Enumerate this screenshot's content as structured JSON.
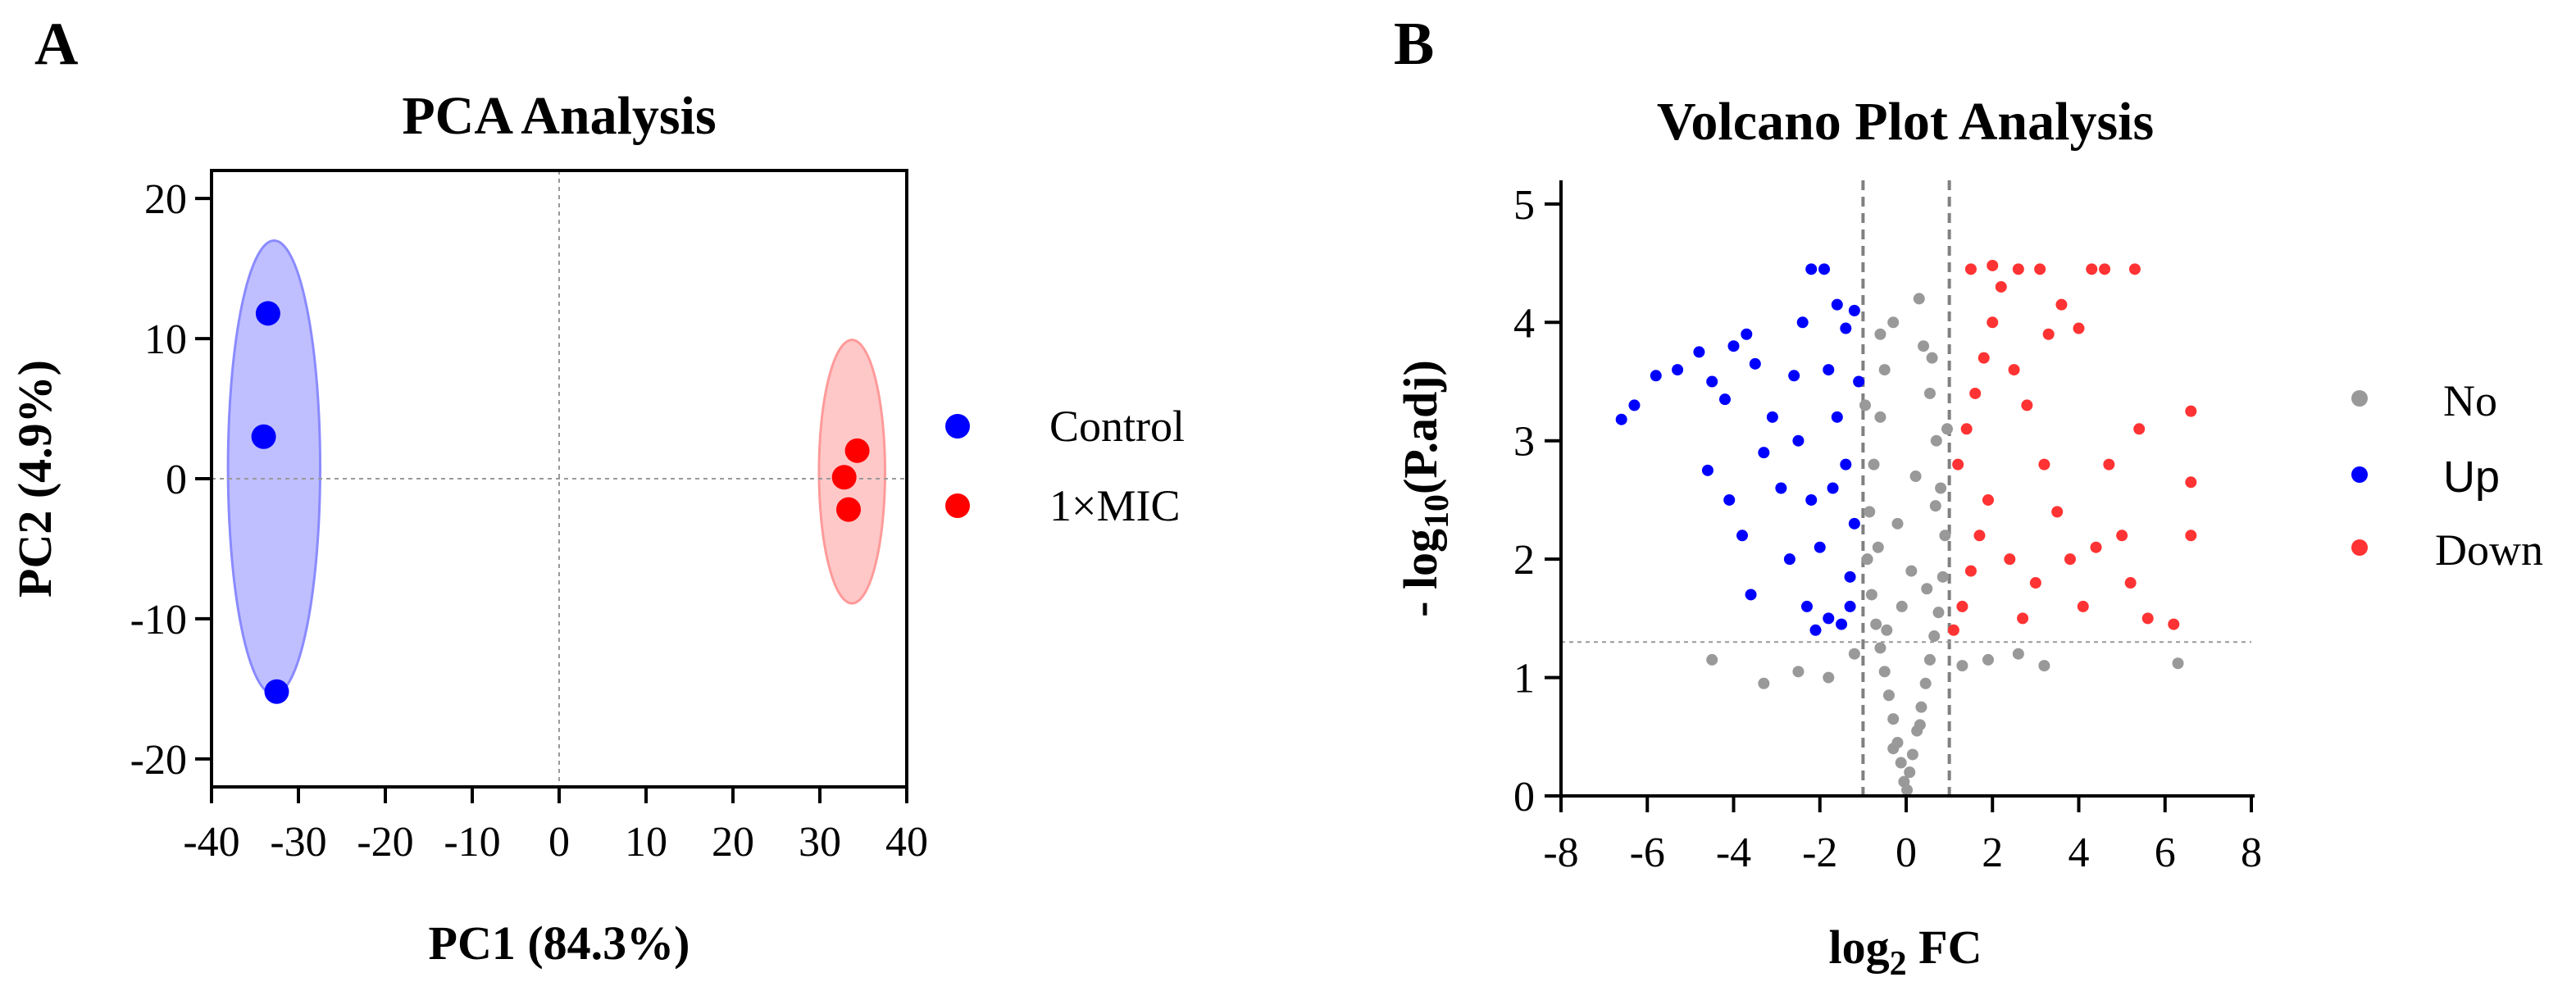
{
  "panels": {
    "a": {
      "letter": "A"
    },
    "b": {
      "letter": "B"
    }
  },
  "chart_data": [
    {
      "type": "scatter",
      "title": "PCA Analysis",
      "xlabel": "PC1 (84.3%)",
      "ylabel": "PC2 (4.9%)",
      "xlim": [
        -40,
        40
      ],
      "ylim": [
        -22,
        22
      ],
      "xticks": [
        -40,
        -30,
        -20,
        -10,
        0,
        10,
        20,
        30,
        40
      ],
      "yticks": [
        -20,
        -10,
        0,
        10,
        20
      ],
      "xtick_labels": [
        "-40",
        "-30",
        "-20",
        "-10",
        "0",
        "10",
        "20",
        "30",
        "40"
      ],
      "ytick_labels": [
        "-20",
        "-10",
        "0",
        "10",
        "20"
      ],
      "reference_lines": {
        "x": 0,
        "y": 0
      },
      "legend_position": "right",
      "series": [
        {
          "name": "Control",
          "color": "#0000ff",
          "ellipse_color": "#8a8aff",
          "points": [
            [
              -33.5,
              11.8
            ],
            [
              -34,
              3
            ],
            [
              -32.5,
              -15.2
            ]
          ],
          "ellipse": {
            "cx": -32.8,
            "cy": 0.8,
            "rx": 5.3,
            "ry": 16.2
          }
        },
        {
          "name": "1×MIC",
          "color": "#ff0000",
          "ellipse_color": "#ff9a9a",
          "points": [
            [
              34.3,
              2
            ],
            [
              32.8,
              0.1
            ],
            [
              33.3,
              -2.2
            ]
          ],
          "ellipse": {
            "cx": 33.7,
            "cy": 0.5,
            "rx": 3.8,
            "ry": 9.4
          }
        }
      ]
    },
    {
      "type": "scatter",
      "title": "Volcano Plot Analysis",
      "xlabel_main": "log",
      "xlabel_sub": "2",
      "xlabel_tail": " FC",
      "ylabel_main": "- log",
      "ylabel_sub": "10",
      "ylabel_tail": "(P.adj)",
      "xlim": [
        -8,
        8
      ],
      "ylim": [
        0,
        5.2
      ],
      "xticks": [
        -8,
        -6,
        -4,
        -2,
        0,
        2,
        4,
        6,
        8
      ],
      "yticks": [
        0,
        1,
        2,
        3,
        4,
        5
      ],
      "xtick_labels": [
        "-8",
        "-6",
        "-4",
        "-2",
        "0",
        "2",
        "4",
        "6",
        "8"
      ],
      "ytick_labels": [
        "0",
        "1",
        "2",
        "3",
        "4",
        "5"
      ],
      "thresholds": {
        "x": [
          -1,
          1
        ],
        "y": 1.3
      },
      "legend_position": "right",
      "series": [
        {
          "name": "No",
          "color": "#999999",
          "points": [
            [
              0.02,
              0.05
            ],
            [
              -0.05,
              0.12
            ],
            [
              0.08,
              0.2
            ],
            [
              -0.12,
              0.28
            ],
            [
              0.15,
              0.35
            ],
            [
              -0.2,
              0.45
            ],
            [
              0.25,
              0.55
            ],
            [
              -0.3,
              0.65
            ],
            [
              0.35,
              0.75
            ],
            [
              -0.4,
              0.85
            ],
            [
              0.45,
              0.95
            ],
            [
              -0.5,
              1.05
            ],
            [
              0.55,
              1.15
            ],
            [
              -0.6,
              1.25
            ],
            [
              0.65,
              1.35
            ],
            [
              -0.7,
              1.45
            ],
            [
              0.75,
              1.55
            ],
            [
              -0.8,
              1.7
            ],
            [
              0.85,
              1.85
            ],
            [
              -0.9,
              2.0
            ],
            [
              0.9,
              2.2
            ],
            [
              -0.85,
              2.4
            ],
            [
              0.8,
              2.6
            ],
            [
              -0.75,
              2.8
            ],
            [
              0.7,
              3.0
            ],
            [
              -0.6,
              3.2
            ],
            [
              0.55,
              3.4
            ],
            [
              -0.5,
              3.6
            ],
            [
              0.4,
              3.8
            ],
            [
              -0.3,
              4.0
            ],
            [
              0.3,
              4.2
            ],
            [
              -0.6,
              3.9
            ],
            [
              0.6,
              3.7
            ],
            [
              -0.95,
              3.3
            ],
            [
              0.95,
              3.1
            ],
            [
              -1.2,
              1.2
            ],
            [
              1.3,
              1.1
            ],
            [
              -1.8,
              1.0
            ],
            [
              1.9,
              1.15
            ],
            [
              -2.5,
              1.05
            ],
            [
              2.6,
              1.2
            ],
            [
              -3.3,
              0.95
            ],
            [
              3.2,
              1.1
            ],
            [
              -4.5,
              1.15
            ],
            [
              6.3,
              1.12
            ],
            [
              -0.1,
              1.6
            ],
            [
              0.12,
              1.9
            ],
            [
              -0.2,
              2.3
            ],
            [
              0.22,
              2.7
            ],
            [
              -0.3,
              0.4
            ],
            [
              0.32,
              0.6
            ],
            [
              -0.45,
              1.4
            ],
            [
              0.48,
              1.75
            ],
            [
              -0.65,
              2.1
            ],
            [
              0.68,
              2.45
            ]
          ]
        },
        {
          "name": "Up",
          "color": "#0000ff",
          "points": [
            [
              -6.6,
              3.18
            ],
            [
              -6.3,
              3.3
            ],
            [
              -5.8,
              3.55
            ],
            [
              -5.3,
              3.6
            ],
            [
              -4.8,
              3.75
            ],
            [
              -4.5,
              3.5
            ],
            [
              -4.2,
              3.35
            ],
            [
              -4.0,
              3.8
            ],
            [
              -3.7,
              3.9
            ],
            [
              -3.5,
              3.65
            ],
            [
              -4.6,
              2.75
            ],
            [
              -4.1,
              2.5
            ],
            [
              -3.8,
              2.2
            ],
            [
              -3.6,
              1.7
            ],
            [
              -3.3,
              2.9
            ],
            [
              -3.1,
              3.2
            ],
            [
              -2.9,
              2.6
            ],
            [
              -2.7,
              2.0
            ],
            [
              -2.6,
              3.55
            ],
            [
              -2.4,
              4.0
            ],
            [
              -2.2,
              4.45
            ],
            [
              -1.9,
              4.45
            ],
            [
              -1.6,
              4.15
            ],
            [
              -1.4,
              3.95
            ],
            [
              -1.2,
              4.1
            ],
            [
              -2.3,
              1.6
            ],
            [
              -2.1,
              1.4
            ],
            [
              -1.8,
              1.5
            ],
            [
              -1.5,
              1.45
            ],
            [
              -1.3,
              1.85
            ],
            [
              -1.2,
              2.3
            ],
            [
              -1.4,
              2.8
            ],
            [
              -1.6,
              3.2
            ],
            [
              -1.8,
              3.6
            ],
            [
              -2.0,
              2.1
            ],
            [
              -2.2,
              2.5
            ],
            [
              -2.5,
              3.0
            ],
            [
              -1.1,
              3.5
            ],
            [
              -1.3,
              1.6
            ],
            [
              -1.7,
              2.6
            ]
          ]
        },
        {
          "name": "Down",
          "color": "#ff3333",
          "points": [
            [
              1.1,
              1.4
            ],
            [
              1.3,
              1.6
            ],
            [
              1.5,
              1.9
            ],
            [
              1.7,
              2.2
            ],
            [
              1.9,
              2.5
            ],
            [
              1.2,
              2.8
            ],
            [
              1.4,
              3.1
            ],
            [
              1.6,
              3.4
            ],
            [
              1.8,
              3.7
            ],
            [
              2.0,
              4.0
            ],
            [
              2.2,
              4.3
            ],
            [
              1.5,
              4.45
            ],
            [
              2.0,
              4.48
            ],
            [
              2.6,
              4.45
            ],
            [
              3.1,
              4.45
            ],
            [
              3.6,
              4.15
            ],
            [
              4.0,
              3.95
            ],
            [
              4.3,
              4.45
            ],
            [
              4.6,
              4.45
            ],
            [
              5.3,
              4.45
            ],
            [
              2.8,
              3.3
            ],
            [
              3.2,
              2.8
            ],
            [
              3.5,
              2.4
            ],
            [
              3.8,
              2.0
            ],
            [
              4.1,
              1.6
            ],
            [
              4.4,
              2.1
            ],
            [
              4.7,
              2.8
            ],
            [
              5.0,
              2.2
            ],
            [
              5.2,
              1.8
            ],
            [
              5.4,
              3.1
            ],
            [
              5.6,
              1.5
            ],
            [
              6.6,
              3.25
            ],
            [
              6.6,
              2.65
            ],
            [
              6.6,
              2.2
            ],
            [
              6.2,
              1.45
            ],
            [
              3.0,
              1.8
            ],
            [
              2.4,
              2.0
            ],
            [
              2.5,
              3.6
            ],
            [
              3.3,
              3.9
            ],
            [
              2.7,
              1.5
            ]
          ]
        }
      ]
    }
  ]
}
